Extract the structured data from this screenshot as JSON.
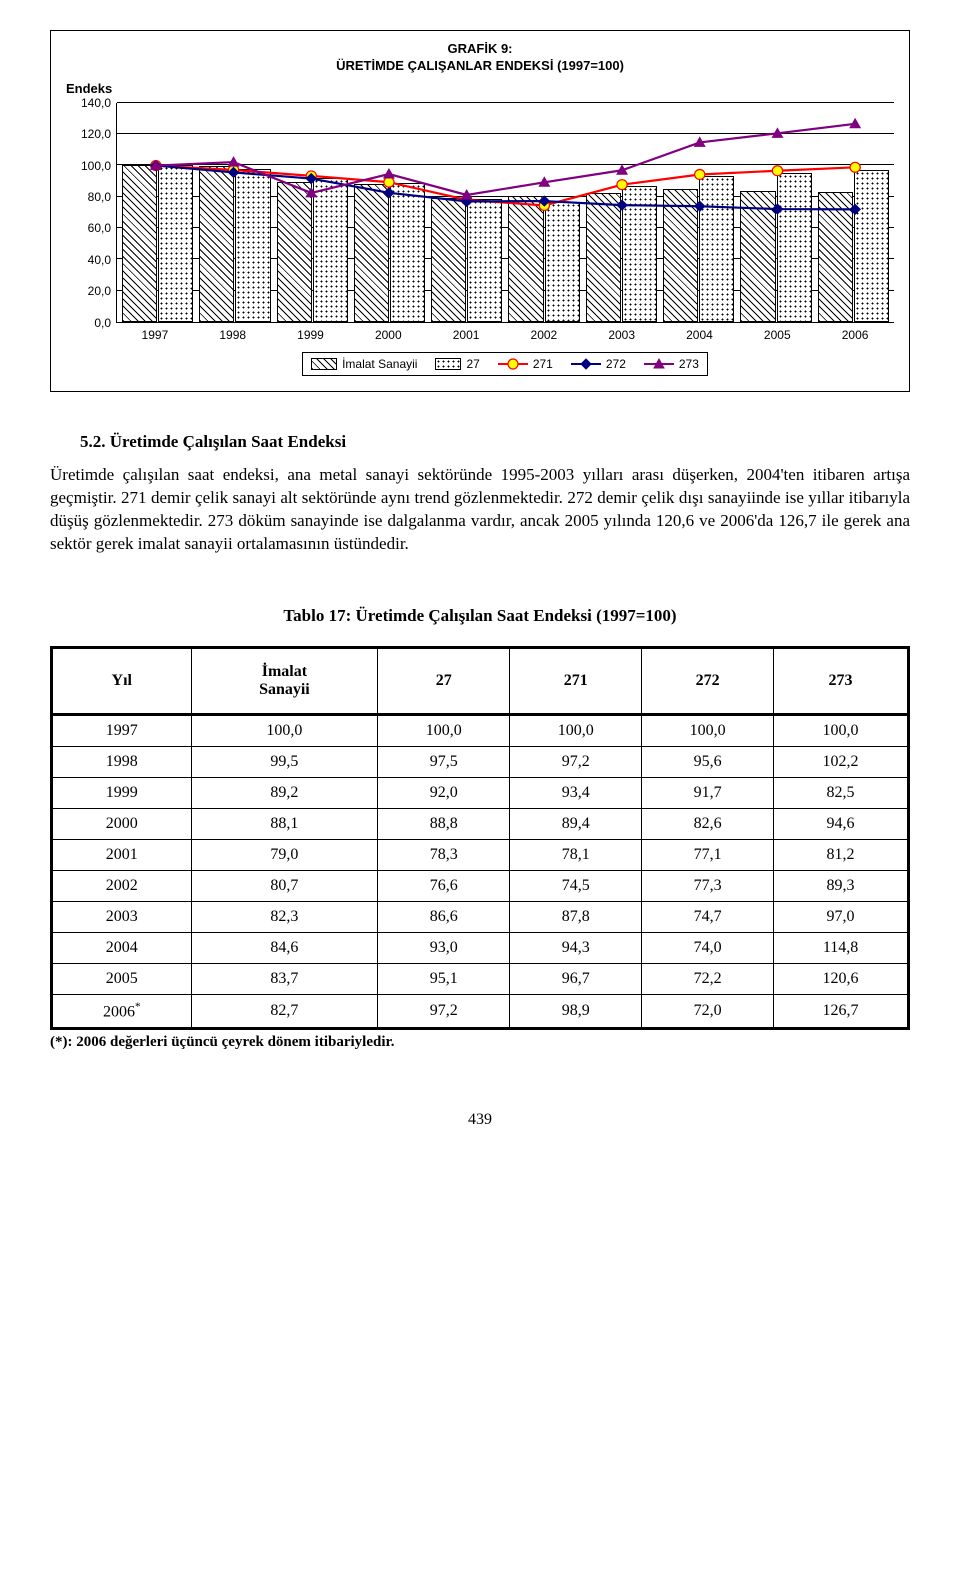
{
  "chart": {
    "title_line1": "GRAFİK 9:",
    "title_line2": "ÜRETİMDE ÇALIŞANLAR ENDEKSİ (1997=100)",
    "y_title": "Endeks",
    "y_ticks": [
      "0,0",
      "20,0",
      "40,0",
      "60,0",
      "80,0",
      "100,0",
      "120,0",
      "140,0"
    ],
    "y_tick_values": [
      0,
      20,
      40,
      60,
      80,
      100,
      120,
      140
    ],
    "ymax": 140,
    "categories": [
      "1997",
      "1998",
      "1999",
      "2000",
      "2001",
      "2002",
      "2003",
      "2004",
      "2005",
      "2006"
    ],
    "bar_series": [
      {
        "name": "İmalat Sanayii",
        "pattern": "hatch",
        "values": [
          100.0,
          99.5,
          89.2,
          88.1,
          79.0,
          80.7,
          82.3,
          84.6,
          83.7,
          82.7
        ]
      },
      {
        "name": "27",
        "pattern": "dots",
        "values": [
          100.0,
          97.5,
          92.0,
          88.8,
          78.3,
          76.6,
          86.6,
          93.0,
          95.1,
          97.2
        ]
      }
    ],
    "line_series": [
      {
        "name": "271",
        "color": "#ff0000",
        "marker": "circle",
        "marker_fill": "#ffff00",
        "values": [
          100.0,
          97.2,
          93.4,
          89.4,
          78.1,
          74.5,
          87.8,
          94.3,
          96.7,
          98.9
        ]
      },
      {
        "name": "272",
        "color": "#000080",
        "marker": "diamond",
        "marker_fill": "#000080",
        "values": [
          100.0,
          95.6,
          91.7,
          82.6,
          77.1,
          77.3,
          74.7,
          74.0,
          72.2,
          72.0
        ]
      },
      {
        "name": "273",
        "color": "#800080",
        "marker": "triangle",
        "marker_fill": "#800080",
        "values": [
          100.0,
          102.2,
          82.5,
          94.6,
          81.2,
          89.3,
          97.0,
          114.8,
          120.6,
          126.7
        ]
      }
    ],
    "legend": [
      {
        "type": "bar",
        "pattern": "hatch",
        "label": "İmalat Sanayii"
      },
      {
        "type": "bar",
        "pattern": "dots",
        "label": "27"
      },
      {
        "type": "line",
        "color": "#ff0000",
        "marker": "circle",
        "marker_fill": "#ffff00",
        "label": "271"
      },
      {
        "type": "line",
        "color": "#000080",
        "marker": "diamond",
        "marker_fill": "#000080",
        "label": "272"
      },
      {
        "type": "line",
        "color": "#800080",
        "marker": "triangle",
        "marker_fill": "#800080",
        "label": "273"
      }
    ],
    "grid_color": "#000000",
    "background": "#ffffff"
  },
  "section": {
    "heading": "5.2. Üretimde Çalışılan Saat Endeksi",
    "body": "Üretimde çalışılan saat endeksi, ana metal sanayi sektöründe 1995-2003 yılları arası düşerken, 2004'ten itibaren artışa geçmiştir. 271 demir çelik sanayi alt sektöründe aynı trend gözlenmektedir. 272 demir çelik dışı sanayiinde ise yıllar itibarıyla düşüş gözlenmektedir. 273 döküm sanayinde ise dalgalanma vardır, ancak 2005 yılında 120,6 ve 2006'da 126,7 ile gerek ana sektör gerek imalat sanayii ortalamasının üstündedir."
  },
  "table": {
    "title": "Tablo 17: Üretimde Çalışılan Saat Endeksi (1997=100)",
    "columns": [
      "Yıl",
      "İmalat\nSanayii",
      "27",
      "271",
      "272",
      "273"
    ],
    "rows": [
      [
        "1997",
        "100,0",
        "100,0",
        "100,0",
        "100,0",
        "100,0"
      ],
      [
        "1998",
        "99,5",
        "97,5",
        "97,2",
        "95,6",
        "102,2"
      ],
      [
        "1999",
        "89,2",
        "92,0",
        "93,4",
        "91,7",
        "82,5"
      ],
      [
        "2000",
        "88,1",
        "88,8",
        "89,4",
        "82,6",
        "94,6"
      ],
      [
        "2001",
        "79,0",
        "78,3",
        "78,1",
        "77,1",
        "81,2"
      ],
      [
        "2002",
        "80,7",
        "76,6",
        "74,5",
        "77,3",
        "89,3"
      ],
      [
        "2003",
        "82,3",
        "86,6",
        "87,8",
        "74,7",
        "97,0"
      ],
      [
        "2004",
        "84,6",
        "93,0",
        "94,3",
        "74,0",
        "114,8"
      ],
      [
        "2005",
        "83,7",
        "95,1",
        "96,7",
        "72,2",
        "120,6"
      ],
      [
        "2006*",
        "82,7",
        "97,2",
        "98,9",
        "72,0",
        "126,7"
      ]
    ],
    "last_row_year_display": "2006",
    "last_row_year_sup": "*",
    "footnote": "(*): 2006 değerleri üçüncü çeyrek dönem itibariyledir."
  },
  "page_number": "439"
}
